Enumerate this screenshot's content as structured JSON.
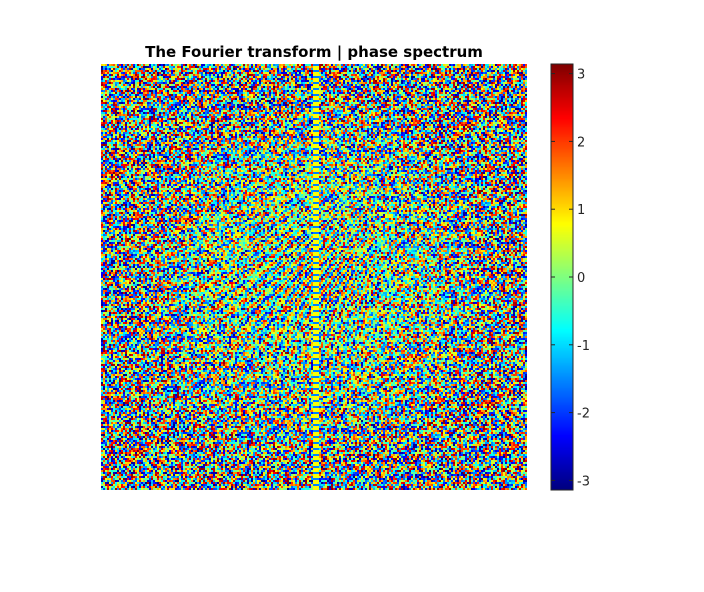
{
  "chart_data": {
    "type": "heatmap",
    "title": "The Fourier transform | phase spectrum",
    "xlabel": "",
    "ylabel": "",
    "axes_visible": false,
    "colormap": "jet",
    "colorbar": {
      "placement": "right",
      "range": [
        -3.14159,
        3.14159
      ],
      "ticks": [
        3,
        2,
        1,
        0,
        -1,
        -2,
        -3
      ],
      "tick_labels": [
        "3",
        "2",
        "1",
        "0",
        "-1",
        "-2",
        "-3"
      ]
    },
    "pattern": {
      "description_visible": "noise-like phase values with interference bands near center",
      "vertical_stripe": true
    },
    "colors": {
      "jet": [
        "#00008f",
        "#0000ff",
        "#00ffff",
        "#80ff80",
        "#ffff00",
        "#ff0000",
        "#800000"
      ]
    }
  }
}
